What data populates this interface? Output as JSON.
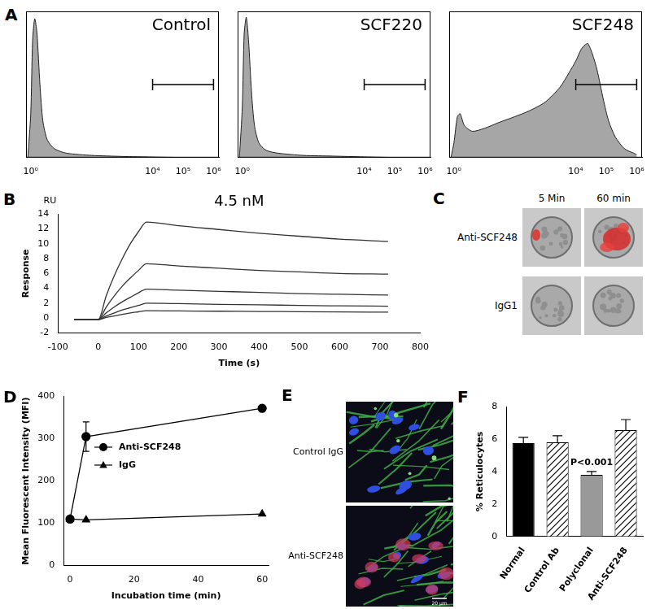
{
  "chart_data": [
    {
      "panel": "A",
      "type": "area",
      "title": "Control",
      "x": [
        0.8,
        1,
        1.15,
        1.35,
        1.6,
        2,
        2.5,
        3.5,
        6,
        15,
        100,
        1000,
        10000,
        100000,
        1000000
      ],
      "values": [
        0,
        30,
        80,
        95,
        85,
        50,
        25,
        12,
        6,
        3,
        1.5,
        0.8,
        0.4,
        0.1,
        0
      ],
      "color": "#a6a6a6",
      "log": "x",
      "xlim": [
        0.7,
        1500000
      ],
      "xticks": [
        {
          "value": 1,
          "label": "10⁰"
        },
        {
          "value": 10000,
          "label": "10⁴"
        },
        {
          "value": 100000,
          "label": "10⁵"
        },
        {
          "value": 1000000,
          "label": "10⁶"
        }
      ],
      "ylim": [
        0,
        100
      ],
      "tick_labels": "x",
      "gate": [
        10000,
        1000000
      ]
    },
    {
      "type": "area",
      "title": "SCF220",
      "x": [
        0.8,
        1,
        1.15,
        1.35,
        1.6,
        2,
        2.5,
        3.5,
        6,
        15,
        100,
        1000,
        10000,
        100000,
        1000000
      ],
      "values": [
        0,
        35,
        85,
        96,
        80,
        45,
        22,
        10,
        5,
        3,
        1.5,
        1,
        0.5,
        0.1,
        0
      ],
      "color": "#a6a6a6",
      "log": "x",
      "xlim": [
        0.7,
        1500000
      ],
      "xticks": [
        {
          "value": 1,
          "label": "10⁰"
        },
        {
          "value": 10000,
          "label": "10⁴"
        },
        {
          "value": 100000,
          "label": "10⁵"
        },
        {
          "value": 1000000,
          "label": "10⁶"
        }
      ],
      "ylim": [
        0,
        100
      ],
      "tick_labels": "x",
      "gate": [
        10000,
        1000000
      ]
    },
    {
      "type": "area",
      "title": "SCF248",
      "x": [
        0.8,
        1,
        1.3,
        1.6,
        2.2,
        4,
        10,
        30,
        100,
        300,
        1000,
        3000,
        6000,
        10000,
        15000,
        20000,
        25000,
        35000,
        50000,
        80000,
        120000,
        200000,
        400000,
        800000,
        1000000
      ],
      "values": [
        0,
        10,
        28,
        30,
        22,
        18,
        20,
        24,
        28,
        32,
        38,
        48,
        58,
        66,
        74,
        77,
        78,
        71,
        60,
        40,
        25,
        14,
        6,
        3,
        2
      ],
      "color": "#a6a6a6",
      "log": "x",
      "xlim": [
        0.7,
        1500000
      ],
      "xticks": [
        {
          "value": 1,
          "label": "10⁰"
        },
        {
          "value": 10000,
          "label": "10⁴"
        },
        {
          "value": 100000,
          "label": "10⁵"
        },
        {
          "value": 1000000,
          "label": "10⁶"
        }
      ],
      "ylim": [
        0,
        100
      ],
      "tick_labels": "x",
      "gate": [
        10000,
        1000000
      ]
    },
    {
      "panel": "B",
      "type": "line",
      "title": "4.5 nM",
      "annotations": [
        "RU"
      ],
      "xlabel": "Time (s)",
      "ylabel": "Response",
      "x": [
        -60,
        0,
        20,
        40,
        60,
        80,
        100,
        120,
        200,
        300,
        400,
        500,
        600,
        720
      ],
      "series": [
        {
          "color": "#333333",
          "values": [
            -0.2,
            -0.2,
            3.0,
            5.7,
            8.0,
            10.0,
            11.6,
            12.9,
            12.4,
            11.9,
            11.4,
            11.0,
            10.6,
            10.3
          ]
        },
        {
          "color": "#333333",
          "values": [
            -0.2,
            -0.2,
            1.5,
            3.0,
            4.3,
            5.4,
            6.4,
            7.3,
            7.0,
            6.7,
            6.4,
            6.2,
            6.0,
            5.9
          ]
        },
        {
          "color": "#333333",
          "values": [
            -0.2,
            -0.2,
            0.7,
            1.5,
            2.2,
            2.8,
            3.4,
            3.9,
            3.75,
            3.6,
            3.45,
            3.3,
            3.2,
            3.1
          ]
        },
        {
          "color": "#333333",
          "values": [
            -0.2,
            -0.2,
            0.3,
            0.7,
            1.1,
            1.4,
            1.7,
            2.0,
            1.95,
            1.85,
            1.8,
            1.7,
            1.65,
            1.6
          ]
        },
        {
          "color": "#333333",
          "values": [
            -0.2,
            -0.2,
            0.1,
            0.3,
            0.5,
            0.7,
            0.85,
            1.0,
            0.97,
            0.93,
            0.9,
            0.86,
            0.83,
            0.8
          ]
        }
      ],
      "xlim": [
        -100,
        800
      ],
      "xticks": [
        -100,
        0,
        100,
        200,
        300,
        400,
        500,
        600,
        700,
        800
      ],
      "ylim": [
        -2,
        14
      ],
      "yticks": [
        -2,
        0,
        2,
        4,
        6,
        8,
        10,
        12,
        14
      ],
      "grid": false
    },
    {
      "panel": "D",
      "type": "line",
      "xlabel": "Incubation time (min)",
      "ylabel": "Mean Fluorescent Intensity (MFI)",
      "x": [
        0,
        5,
        60
      ],
      "series": [
        {
          "name": "Anti-SCF248",
          "color": "#000000",
          "marker": "circle",
          "values": [
            110,
            305,
            372
          ],
          "errors": [
            0,
            35,
            0
          ]
        },
        {
          "name": "IgG",
          "color": "#000000",
          "marker": "triangle",
          "values": [
            110,
            108,
            122
          ]
        }
      ],
      "xlim": [
        -2,
        62
      ],
      "xticks": [
        0,
        20,
        40,
        60
      ],
      "ylim": [
        0,
        400
      ],
      "yticks": [
        0,
        100,
        200,
        300,
        400
      ],
      "legend": "upper left",
      "grid": false
    },
    {
      "panel": "F",
      "type": "bar",
      "ylabel": "% Reticulocytes",
      "categories": [
        "Normal",
        "Control Ab",
        "Polyclonal",
        "Anti-SCF248"
      ],
      "values": [
        5.75,
        5.8,
        3.8,
        6.55
      ],
      "errors": [
        0.35,
        0.4,
        0.2,
        0.65
      ],
      "colors": [
        "#000000",
        "#ffffff",
        "#999999",
        "#ffffff"
      ],
      "ylim": [
        0,
        8
      ],
      "yticks": [
        0,
        2,
        4,
        6,
        8
      ],
      "annotations": [
        {
          "category": "Polyclonal",
          "text": "P<0.001"
        }
      ],
      "grid": false
    }
  ],
  "image_panels": [
    {
      "panel": "C",
      "columns": [
        "5 Min",
        "60 min"
      ],
      "rows": [
        "Anti-SCF248",
        "IgG1"
      ]
    },
    {
      "panel": "E",
      "rows": [
        "Control IgG",
        "Anti-SCF248"
      ],
      "scale_bar": "20 μm"
    }
  ]
}
